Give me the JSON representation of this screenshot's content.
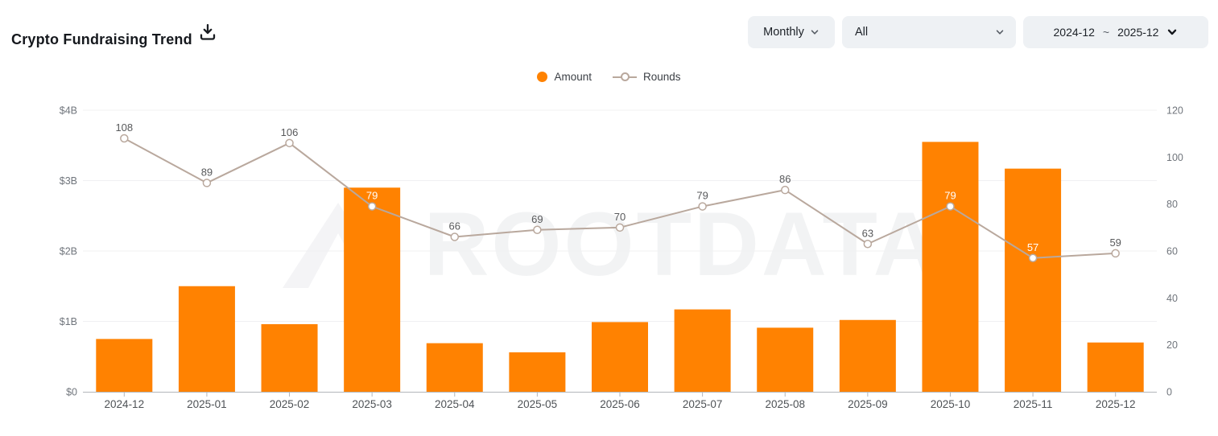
{
  "header": {
    "title": "Crypto Fundraising Trend"
  },
  "filters": {
    "interval": {
      "value": "Monthly"
    },
    "category": {
      "value": "All"
    },
    "date_range": {
      "start": "2024-12",
      "separator": "~",
      "end": "2025-12"
    }
  },
  "legend": {
    "amount": {
      "label": "Amount"
    },
    "rounds": {
      "label": "Rounds"
    }
  },
  "watermark": {
    "text": "ROOTDATA"
  },
  "colors": {
    "amount_orange": "#ff8201",
    "rounds_line": "#b9a89d",
    "grid": "#f0f0f2",
    "axis_line": "#b3b6ba",
    "axis_text": "#70757c",
    "x_label_text": "#4e5256",
    "data_label": "#58595b",
    "data_label_on_bar": "#ffffff"
  },
  "chart_data": {
    "type": "bar+line combo",
    "title": "Crypto Fundraising Trend",
    "categories": [
      "2024-12",
      "2025-01",
      "2025-02",
      "2025-03",
      "2025-04",
      "2025-05",
      "2025-06",
      "2025-07",
      "2025-08",
      "2025-09",
      "2025-10",
      "2025-11",
      "2025-12"
    ],
    "series": [
      {
        "name": "Amount",
        "type": "bar",
        "axis": "left",
        "unit": "$B",
        "values": [
          0.75,
          1.5,
          0.96,
          2.9,
          0.69,
          0.56,
          0.99,
          1.17,
          0.91,
          1.02,
          3.55,
          3.17,
          0.7
        ]
      },
      {
        "name": "Rounds",
        "type": "line",
        "axis": "right",
        "values": [
          108,
          89,
          106,
          79,
          66,
          69,
          70,
          79,
          86,
          63,
          79,
          57,
          59
        ]
      }
    ],
    "left_axis": {
      "tick_labels": [
        "$4B",
        "$3B",
        "$2B",
        "$1B",
        "$0"
      ],
      "tick_values": [
        4,
        3,
        2,
        1,
        0
      ],
      "min": 0,
      "max": 4
    },
    "right_axis": {
      "tick_labels": [
        "120",
        "100",
        "80",
        "60",
        "40",
        "20",
        "0"
      ],
      "tick_values": [
        120,
        100,
        80,
        60,
        40,
        20,
        0
      ],
      "min": 0,
      "max": 120
    },
    "grid": true,
    "legend_position": "top-center",
    "data_labels_series": "Rounds"
  }
}
